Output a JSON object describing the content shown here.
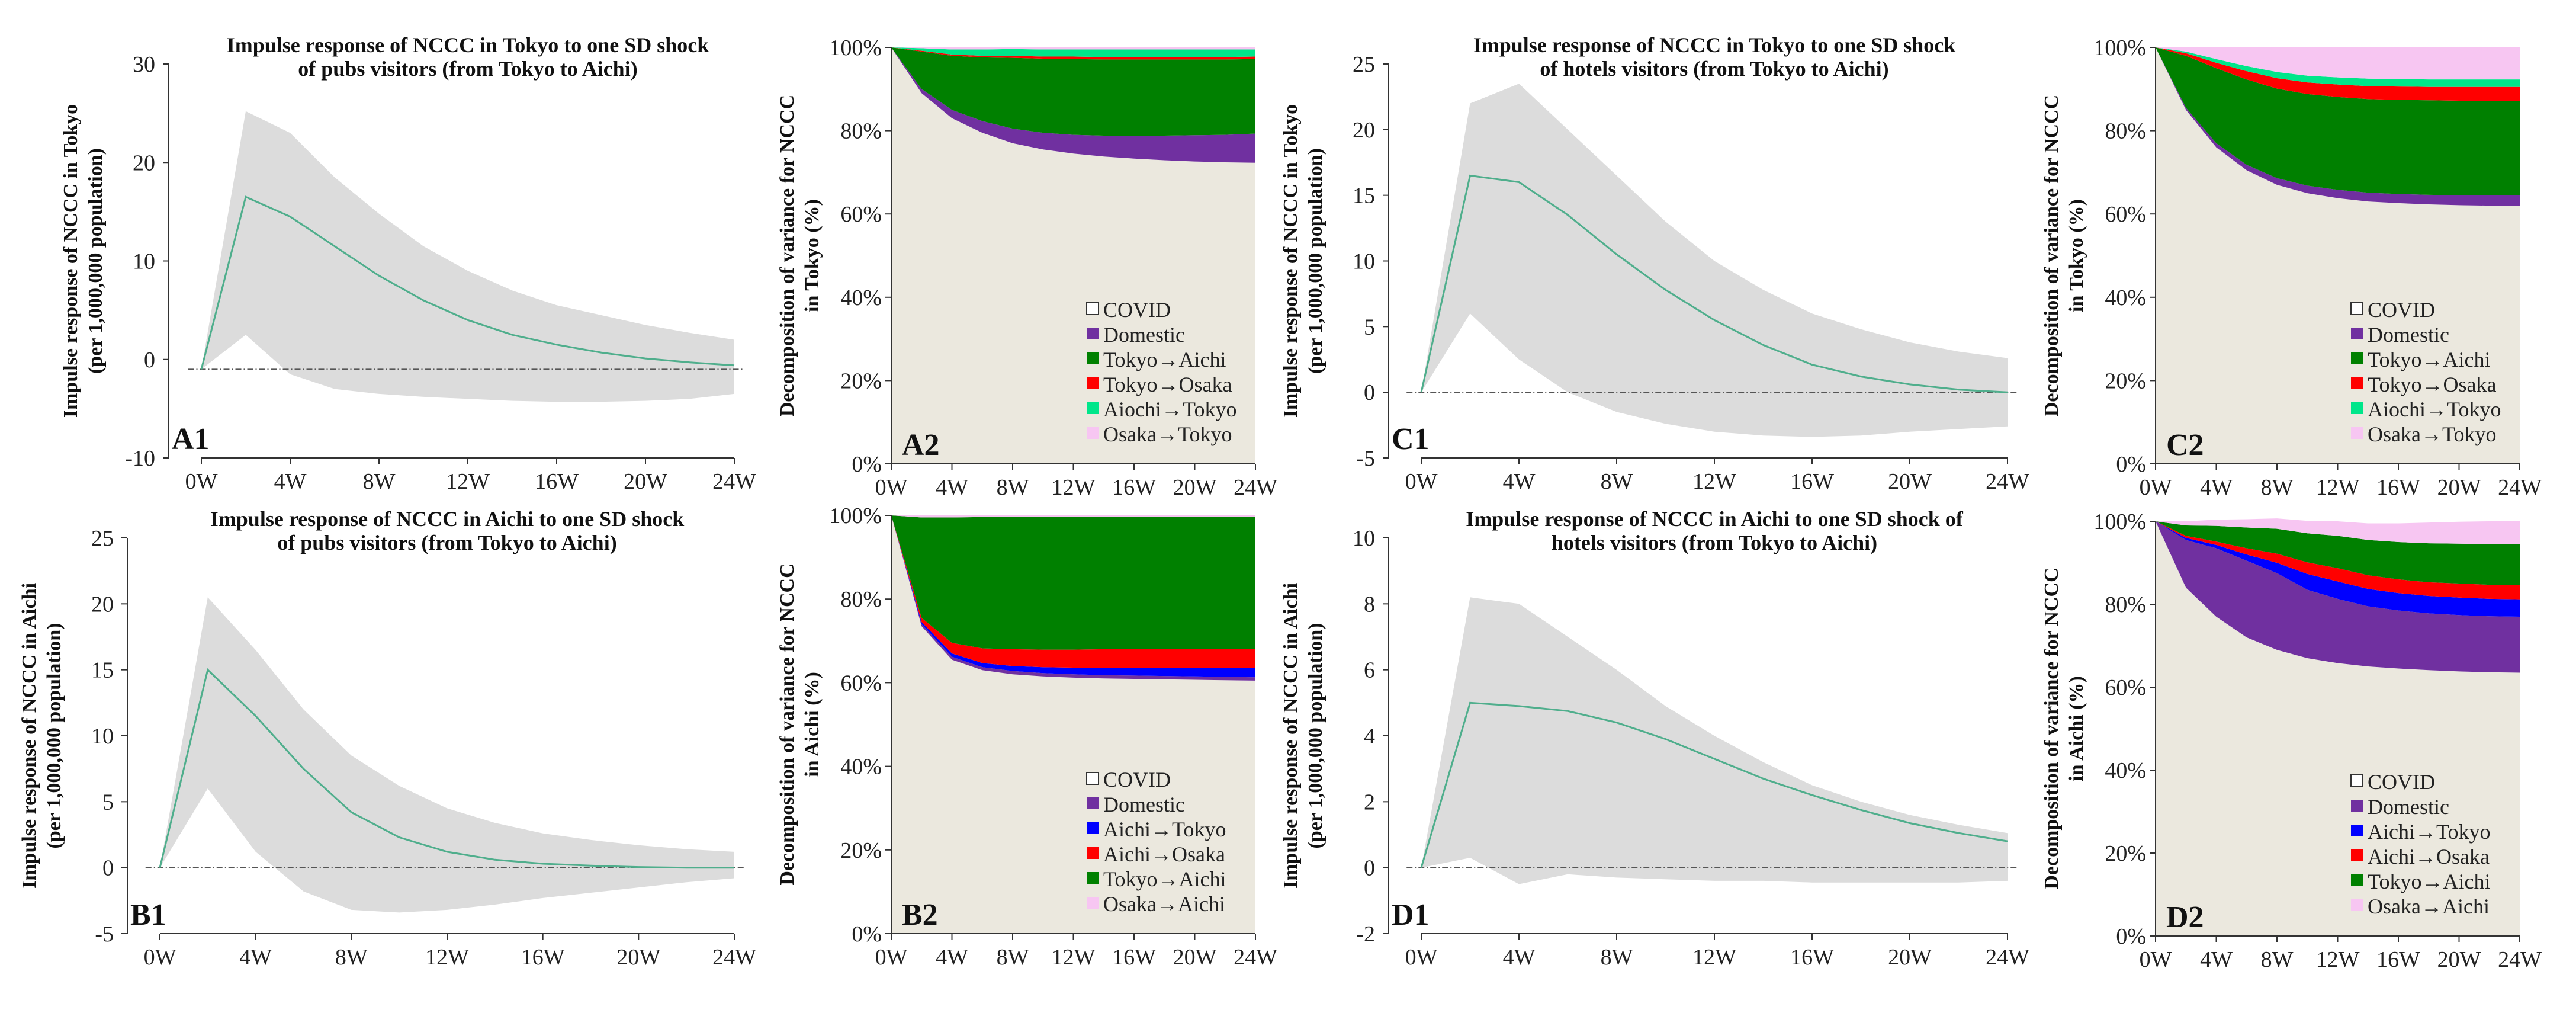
{
  "figure": {
    "colors": {
      "ci_band": "#dcdcdc",
      "irf_line": "#4fae8c",
      "zero_line": "#555555",
      "axis": "#333333",
      "bg_area": "#ebe8de",
      "Domestic": "#7030a0",
      "Tokyo→Aichi": "#008000",
      "Tokyo→Osaka": "#ff0000",
      "Aiochi→Tokyo": "#00e68a",
      "Osaka→Tokyo": "#f7c6f2",
      "Aichi→Tokyo": "#0000ff",
      "Aichi→Osaka": "#ff0000",
      "Osaka→Aichi": "#f7c6f2"
    }
  },
  "chart_data": [
    {
      "id": "A1",
      "type": "line",
      "panel_label": "A1",
      "title": [
        "Impulse response of NCCC in Tokyo to one SD shock",
        "of pubs visitors (from Tokyo to Aichi)"
      ],
      "ylabel": [
        "Impulse response of NCCC in Tokyo",
        "(per 1,000,000 population)"
      ],
      "ylim": [
        -10,
        30
      ],
      "yticks": [
        -10,
        0,
        10,
        20,
        30
      ],
      "xticks": [
        "0W",
        "4W",
        "8W",
        "12W",
        "16W",
        "20W",
        "24W"
      ],
      "x": [
        0,
        2,
        4,
        6,
        8,
        10,
        12,
        14,
        16,
        18,
        20,
        22,
        24
      ],
      "zero_line": -1.0,
      "series": [
        {
          "values": [
            -1,
            16.5,
            14.5,
            11.5,
            8.5,
            6.0,
            4.0,
            2.5,
            1.5,
            0.7,
            0.1,
            -0.3,
            -0.6
          ]
        }
      ],
      "upper": [
        -1,
        25.2,
        23.0,
        18.5,
        14.8,
        11.5,
        9.0,
        7.0,
        5.5,
        4.5,
        3.5,
        2.7,
        2.0
      ],
      "lower": [
        -1,
        2.5,
        -1.5,
        -3.0,
        -3.5,
        -3.8,
        -4.0,
        -4.2,
        -4.3,
        -4.3,
        -4.2,
        -4.0,
        -3.5
      ]
    },
    {
      "id": "B1",
      "type": "line",
      "panel_label": "B1",
      "title": [
        "Impulse response of NCCC in Aichi to one SD shock",
        "of pubs visitors (from Tokyo to Aichi)"
      ],
      "ylabel": [
        "Impulse response of NCCC in Aichi",
        "(per 1,000,000 population)"
      ],
      "ylim": [
        -5,
        25
      ],
      "yticks": [
        -5,
        0,
        5,
        10,
        15,
        20,
        25
      ],
      "xticks": [
        "0W",
        "4W",
        "8W",
        "12W",
        "16W",
        "20W",
        "24W"
      ],
      "x": [
        0,
        2,
        4,
        6,
        8,
        10,
        12,
        14,
        16,
        18,
        20,
        22,
        24
      ],
      "zero_line": 0,
      "series": [
        {
          "values": [
            0,
            15.0,
            11.5,
            7.5,
            4.2,
            2.3,
            1.2,
            0.6,
            0.3,
            0.15,
            0.05,
            0.0,
            0.0
          ]
        }
      ],
      "upper": [
        0,
        20.5,
        16.5,
        12.0,
        8.5,
        6.2,
        4.5,
        3.4,
        2.6,
        2.1,
        1.7,
        1.4,
        1.2
      ],
      "lower": [
        0,
        6.0,
        1.2,
        -1.8,
        -3.2,
        -3.4,
        -3.2,
        -2.8,
        -2.3,
        -1.9,
        -1.5,
        -1.1,
        -0.8
      ]
    },
    {
      "id": "C1",
      "type": "line",
      "panel_label": "C1",
      "title": [
        "Impulse response of NCCC in Tokyo to one SD shock",
        "of hotels visitors (from Tokyo to Aichi)"
      ],
      "ylabel": [
        "Impulse response of NCCC in Tokyo",
        "(per 1,000,000 population)"
      ],
      "ylim": [
        -5,
        25
      ],
      "yticks": [
        -5,
        0,
        5,
        10,
        15,
        20,
        25
      ],
      "xticks": [
        "0W",
        "4W",
        "8W",
        "12W",
        "16W",
        "20W",
        "24W"
      ],
      "x": [
        0,
        2,
        4,
        6,
        8,
        10,
        12,
        14,
        16,
        18,
        20,
        22,
        24
      ],
      "zero_line": 0,
      "series": [
        {
          "values": [
            0,
            16.5,
            16.0,
            13.5,
            10.5,
            7.8,
            5.5,
            3.6,
            2.1,
            1.2,
            0.6,
            0.2,
            0.0
          ]
        }
      ],
      "upper": [
        0,
        22.0,
        23.5,
        20.0,
        16.5,
        13.0,
        10.0,
        7.8,
        6.0,
        4.8,
        3.8,
        3.1,
        2.6
      ],
      "lower": [
        0,
        6.0,
        2.5,
        0.0,
        -1.5,
        -2.4,
        -3.0,
        -3.3,
        -3.4,
        -3.3,
        -3.0,
        -2.8,
        -2.6
      ]
    },
    {
      "id": "D1",
      "type": "line",
      "panel_label": "D1",
      "title": [
        "Impulse response of NCCC in Aichi to one SD shock of",
        "hotels visitors (from Tokyo to Aichi)"
      ],
      "ylabel": [
        "Impulse response of NCCC in Aichi",
        "(per 1,000,000 population)"
      ],
      "ylim": [
        -2,
        10
      ],
      "yticks": [
        -2,
        0,
        2,
        4,
        6,
        8,
        10
      ],
      "xticks": [
        "0W",
        "4W",
        "8W",
        "12W",
        "16W",
        "20W",
        "24W"
      ],
      "x": [
        0,
        2,
        4,
        6,
        8,
        10,
        12,
        14,
        16,
        18,
        20,
        22,
        24
      ],
      "zero_line": 0,
      "series": [
        {
          "values": [
            0,
            5.0,
            4.9,
            4.75,
            4.4,
            3.9,
            3.3,
            2.7,
            2.2,
            1.75,
            1.35,
            1.05,
            0.8
          ]
        }
      ],
      "upper": [
        0,
        8.2,
        8.0,
        7.0,
        6.0,
        4.9,
        4.0,
        3.2,
        2.5,
        2.0,
        1.6,
        1.3,
        1.05
      ],
      "lower": [
        0,
        0.3,
        -0.5,
        -0.2,
        -0.3,
        -0.35,
        -0.4,
        -0.4,
        -0.45,
        -0.45,
        -0.45,
        -0.45,
        -0.4
      ]
    },
    {
      "id": "A2",
      "type": "area",
      "panel_label": "A2",
      "ylabel": [
        "Decomposition of variance for NCCC",
        "in Tokyo (%)"
      ],
      "ylim": [
        0,
        100
      ],
      "yticks": [
        "0%",
        "20%",
        "40%",
        "60%",
        "80%",
        "100%"
      ],
      "xticks": [
        "0W",
        "4W",
        "8W",
        "12W",
        "16W",
        "20W",
        "24W"
      ],
      "x": [
        0,
        2,
        4,
        6,
        8,
        10,
        12,
        14,
        16,
        18,
        20,
        22,
        24
      ],
      "legend": [
        "COVID",
        "Domestic",
        "Tokyo→Aichi",
        "Tokyo→Osaka",
        "Aiochi→Tokyo",
        "Osaka→Tokyo"
      ],
      "series": [
        {
          "name": "COVID",
          "values": [
            100,
            89,
            83,
            79.5,
            77,
            75.5,
            74.5,
            73.8,
            73.3,
            72.9,
            72.6,
            72.4,
            72.3
          ]
        },
        {
          "name": "Domestic",
          "values": [
            0,
            1.0,
            2.0,
            2.8,
            3.5,
            4.0,
            4.5,
            5.0,
            5.5,
            5.9,
            6.3,
            6.6,
            7.0
          ]
        },
        {
          "name": "Tokyo→Aichi",
          "values": [
            0,
            9.0,
            13.0,
            15.3,
            17.0,
            17.8,
            18.2,
            18.3,
            18.3,
            18.3,
            18.2,
            18.1,
            17.9
          ]
        },
        {
          "name": "Tokyo→Osaka",
          "values": [
            0,
            0.2,
            0.3,
            0.4,
            0.5,
            0.5,
            0.6,
            0.6,
            0.6,
            0.6,
            0.6,
            0.6,
            0.6
          ]
        },
        {
          "name": "Aiochi→Tokyo",
          "values": [
            0,
            0.6,
            1.2,
            1.5,
            1.6,
            1.7,
            1.7,
            1.8,
            1.8,
            1.8,
            1.8,
            1.8,
            1.7
          ]
        },
        {
          "name": "Osaka→Tokyo",
          "values": [
            0,
            0.2,
            0.5,
            0.5,
            0.4,
            0.5,
            0.5,
            0.5,
            0.5,
            0.5,
            0.5,
            0.5,
            0.5
          ]
        }
      ]
    },
    {
      "id": "B2",
      "type": "area",
      "panel_label": "B2",
      "ylabel": [
        "Decomposition of variance for NCCC",
        "in Aichi (%)"
      ],
      "ylim": [
        0,
        100
      ],
      "yticks": [
        "0%",
        "20%",
        "40%",
        "60%",
        "80%",
        "100%"
      ],
      "xticks": [
        "0W",
        "4W",
        "8W",
        "12W",
        "16W",
        "20W",
        "24W"
      ],
      "x": [
        0,
        2,
        4,
        6,
        8,
        10,
        12,
        14,
        16,
        18,
        20,
        22,
        24
      ],
      "legend": [
        "COVID",
        "Domestic",
        "Aichi→Tokyo",
        "Aichi→Osaka",
        "Tokyo→Aichi",
        "Osaka→Aichi"
      ],
      "series": [
        {
          "name": "COVID",
          "values": [
            100,
            73.5,
            65.5,
            63.0,
            62.0,
            61.5,
            61.2,
            61.0,
            60.9,
            60.8,
            60.7,
            60.6,
            60.5
          ]
        },
        {
          "name": "Domestic",
          "values": [
            0,
            0.5,
            0.7,
            0.7,
            0.8,
            0.8,
            0.8,
            0.8,
            0.8,
            0.8,
            0.8,
            0.8,
            0.8
          ]
        },
        {
          "name": "Aichi→Tokyo",
          "values": [
            0,
            0.5,
            0.8,
            1.0,
            1.2,
            1.4,
            1.6,
            1.8,
            1.9,
            2.0,
            2.0,
            2.1,
            2.2
          ]
        },
        {
          "name": "Aichi→Osaka",
          "values": [
            0,
            1.0,
            2.5,
            3.5,
            4.0,
            4.2,
            4.3,
            4.4,
            4.4,
            4.5,
            4.5,
            4.5,
            4.5
          ]
        },
        {
          "name": "Tokyo→Aichi",
          "values": [
            0,
            24.0,
            30.0,
            31.4,
            31.6,
            31.7,
            31.7,
            31.6,
            31.6,
            31.5,
            31.6,
            31.6,
            31.6
          ]
        },
        {
          "name": "Osaka→Aichi",
          "values": [
            0,
            0.5,
            0.5,
            0.4,
            0.4,
            0.4,
            0.4,
            0.4,
            0.4,
            0.4,
            0.4,
            0.4,
            0.4
          ]
        }
      ]
    },
    {
      "id": "C2",
      "type": "area",
      "panel_label": "C2",
      "ylabel": [
        "Decomposition of variance for NCCC",
        "in Tokyo (%)"
      ],
      "ylim": [
        0,
        100
      ],
      "yticks": [
        "0%",
        "20%",
        "40%",
        "60%",
        "80%",
        "100%"
      ],
      "xticks": [
        "0W",
        "4W",
        "8W",
        "12W",
        "16W",
        "20W",
        "24W"
      ],
      "x": [
        0,
        2,
        4,
        6,
        8,
        10,
        12,
        14,
        16,
        18,
        20,
        22,
        24
      ],
      "legend": [
        "COVID",
        "Domestic",
        "Tokyo→Aichi",
        "Tokyo→Osaka",
        "Aiochi→Tokyo",
        "Osaka→Tokyo"
      ],
      "series": [
        {
          "name": "COVID",
          "values": [
            100,
            85,
            76,
            70.5,
            67.0,
            65.0,
            63.8,
            63.0,
            62.6,
            62.3,
            62.1,
            62.0,
            62.0
          ]
        },
        {
          "name": "Domestic",
          "values": [
            0,
            0.5,
            1.0,
            1.3,
            1.6,
            1.8,
            2.0,
            2.1,
            2.2,
            2.3,
            2.4,
            2.5,
            2.5
          ]
        },
        {
          "name": "Tokyo→Aichi",
          "values": [
            0,
            12.5,
            18.0,
            20.5,
            21.5,
            22.0,
            22.3,
            22.5,
            22.6,
            22.7,
            22.7,
            22.7,
            22.7
          ]
        },
        {
          "name": "Tokyo→Osaka",
          "values": [
            0,
            0.6,
            1.3,
            2.0,
            2.5,
            2.8,
            3.0,
            3.1,
            3.2,
            3.2,
            3.3,
            3.3,
            3.3
          ]
        },
        {
          "name": "Aiochi→Tokyo",
          "values": [
            0,
            0.4,
            0.9,
            1.2,
            1.5,
            1.6,
            1.7,
            1.8,
            1.8,
            1.8,
            1.8,
            1.8,
            1.8
          ]
        },
        {
          "name": "Osaka→Tokyo",
          "values": [
            0,
            1.0,
            2.8,
            4.5,
            5.9,
            6.8,
            7.2,
            7.5,
            7.6,
            7.7,
            7.7,
            7.7,
            7.7
          ]
        }
      ]
    },
    {
      "id": "D2",
      "type": "area",
      "panel_label": "D2",
      "ylabel": [
        "Decomposition of variance for NCCC",
        "in Aichi (%)"
      ],
      "ylim": [
        0,
        100
      ],
      "yticks": [
        "0%",
        "20%",
        "40%",
        "60%",
        "80%",
        "100%"
      ],
      "xticks": [
        "0W",
        "4W",
        "8W",
        "12W",
        "16W",
        "20W",
        "24W"
      ],
      "x": [
        0,
        2,
        4,
        6,
        8,
        10,
        12,
        14,
        16,
        18,
        20,
        22,
        24
      ],
      "legend": [
        "COVID",
        "Domestic",
        "Aichi→Tokyo",
        "Aichi→Osaka",
        "Tokyo→Aichi",
        "Osaka→Aichi"
      ],
      "series": [
        {
          "name": "COVID",
          "values": [
            100,
            84,
            77,
            72,
            69,
            67,
            65.8,
            65.0,
            64.5,
            64.1,
            63.8,
            63.6,
            63.5
          ]
        },
        {
          "name": "Domestic",
          "values": [
            0,
            11.5,
            16.5,
            18.5,
            18.5,
            16.5,
            15.5,
            14.5,
            14.0,
            13.7,
            13.6,
            13.5,
            13.5
          ]
        },
        {
          "name": "Aichi→Tokyo",
          "values": [
            0,
            0.5,
            0.8,
            1.5,
            2.5,
            3.8,
            4.2,
            4.2,
            4.2,
            4.2,
            4.2,
            4.2,
            4.2
          ]
        },
        {
          "name": "Aichi→Osaka",
          "values": [
            0,
            0.5,
            0.8,
            1.5,
            2.2,
            2.8,
            3.2,
            3.3,
            3.3,
            3.3,
            3.4,
            3.4,
            3.4
          ]
        },
        {
          "name": "Tokyo→Aichi",
          "values": [
            0,
            2.5,
            3.8,
            5.0,
            6.0,
            7.0,
            7.8,
            8.5,
            9.0,
            9.4,
            9.6,
            9.8,
            9.9
          ]
        },
        {
          "name": "Osaka→Aichi",
          "values": [
            0,
            1.0,
            1.5,
            2.0,
            2.5,
            3.0,
            3.5,
            4.0,
            4.5,
            5.0,
            5.3,
            5.5,
            5.5
          ]
        }
      ]
    }
  ]
}
